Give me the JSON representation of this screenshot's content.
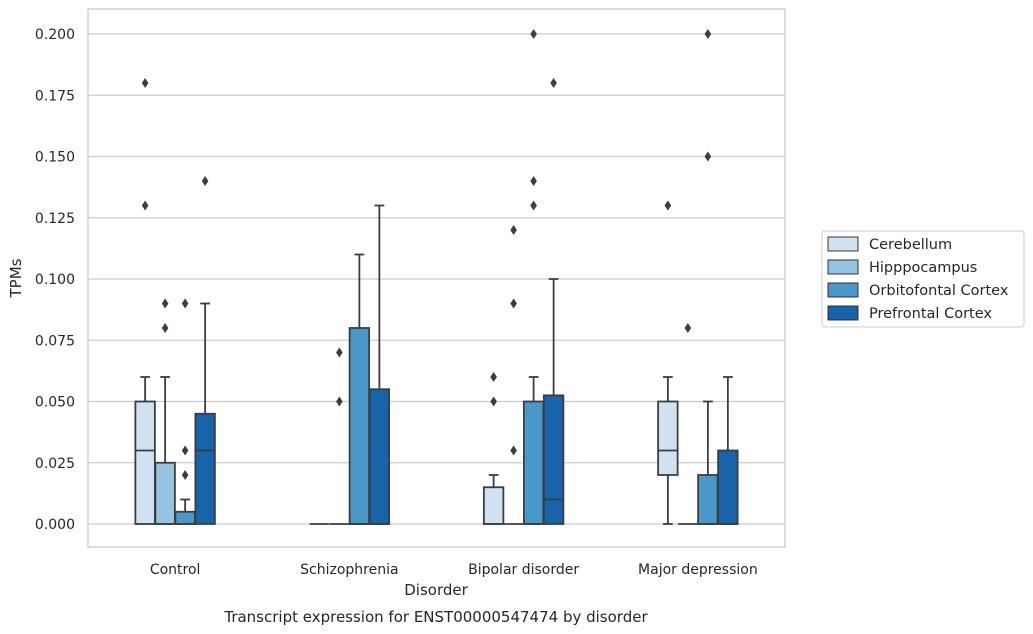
{
  "chart_data": {
    "type": "boxplot",
    "title": "Transcript expression for ENST00000547474 by disorder",
    "xlabel": "Disorder",
    "ylabel": "TPMs",
    "ylim": [
      -0.01,
      0.21
    ],
    "yticks": [
      "0.000",
      "0.025",
      "0.050",
      "0.075",
      "0.100",
      "0.125",
      "0.150",
      "0.175",
      "0.200"
    ],
    "grid": "horizontal",
    "legend_position": "right",
    "categories": [
      "Control",
      "Schizophrenia",
      "Bipolar disorder",
      "Major depression"
    ],
    "series": [
      {
        "name": "Cerebellum",
        "color": "#d0e1f2",
        "boxes": [
          {
            "q1": 0.0,
            "median": 0.03,
            "q3": 0.05,
            "whisker_low": 0.0,
            "whisker_high": 0.06,
            "outliers": [
              0.13,
              0.18
            ]
          },
          {
            "q1": 0.0,
            "median": 0.0,
            "q3": 0.0,
            "whisker_low": 0.0,
            "whisker_high": 0.0,
            "outliers": []
          },
          {
            "q1": 0.0,
            "median": 0.0,
            "q3": 0.015,
            "whisker_low": 0.0,
            "whisker_high": 0.02,
            "outliers": [
              0.05,
              0.06
            ]
          },
          {
            "q1": 0.02,
            "median": 0.03,
            "q3": 0.05,
            "whisker_low": 0.0,
            "whisker_high": 0.06,
            "outliers": [
              0.13
            ]
          }
        ]
      },
      {
        "name": "Hipppocampus",
        "color": "#94c4df",
        "boxes": [
          {
            "q1": 0.0,
            "median": 0.0,
            "q3": 0.025,
            "whisker_low": 0.0,
            "whisker_high": 0.06,
            "outliers": [
              0.08,
              0.09
            ]
          },
          {
            "q1": 0.0,
            "median": 0.0,
            "q3": 0.0,
            "whisker_low": 0.0,
            "whisker_high": 0.0,
            "outliers": [
              0.05,
              0.07
            ]
          },
          {
            "q1": 0.0,
            "median": 0.0,
            "q3": 0.0,
            "whisker_low": 0.0,
            "whisker_high": 0.0,
            "outliers": [
              0.03,
              0.09,
              0.12
            ]
          },
          {
            "q1": 0.0,
            "median": 0.0,
            "q3": 0.0,
            "whisker_low": 0.0,
            "whisker_high": 0.0,
            "outliers": [
              0.08
            ]
          }
        ]
      },
      {
        "name": "Orbitofontal Cortex",
        "color": "#4a98c9",
        "boxes": [
          {
            "q1": 0.0,
            "median": 0.0,
            "q3": 0.005,
            "whisker_low": 0.0,
            "whisker_high": 0.01,
            "outliers": [
              0.02,
              0.03,
              0.09
            ]
          },
          {
            "q1": 0.0,
            "median": 0.0,
            "q3": 0.08,
            "whisker_low": 0.0,
            "whisker_high": 0.11,
            "outliers": []
          },
          {
            "q1": 0.0,
            "median": 0.0,
            "q3": 0.05,
            "whisker_low": 0.0,
            "whisker_high": 0.06,
            "outliers": [
              0.13,
              0.14,
              0.2
            ]
          },
          {
            "q1": 0.0,
            "median": 0.0,
            "q3": 0.02,
            "whisker_low": 0.0,
            "whisker_high": 0.05,
            "outliers": [
              0.15,
              0.2
            ]
          }
        ]
      },
      {
        "name": "Prefrontal Cortex",
        "color": "#1764ab",
        "boxes": [
          {
            "q1": 0.0,
            "median": 0.03,
            "q3": 0.045,
            "whisker_low": 0.0,
            "whisker_high": 0.09,
            "outliers": [
              0.14
            ]
          },
          {
            "q1": 0.0,
            "median": 0.0,
            "q3": 0.055,
            "whisker_low": 0.0,
            "whisker_high": 0.13,
            "outliers": []
          },
          {
            "q1": 0.0,
            "median": 0.01,
            "q3": 0.0525,
            "whisker_low": 0.0,
            "whisker_high": 0.1,
            "outliers": [
              0.18
            ]
          },
          {
            "q1": 0.0,
            "median": 0.0,
            "q3": 0.03,
            "whisker_low": 0.0,
            "whisker_high": 0.06,
            "outliers": []
          }
        ]
      }
    ]
  }
}
